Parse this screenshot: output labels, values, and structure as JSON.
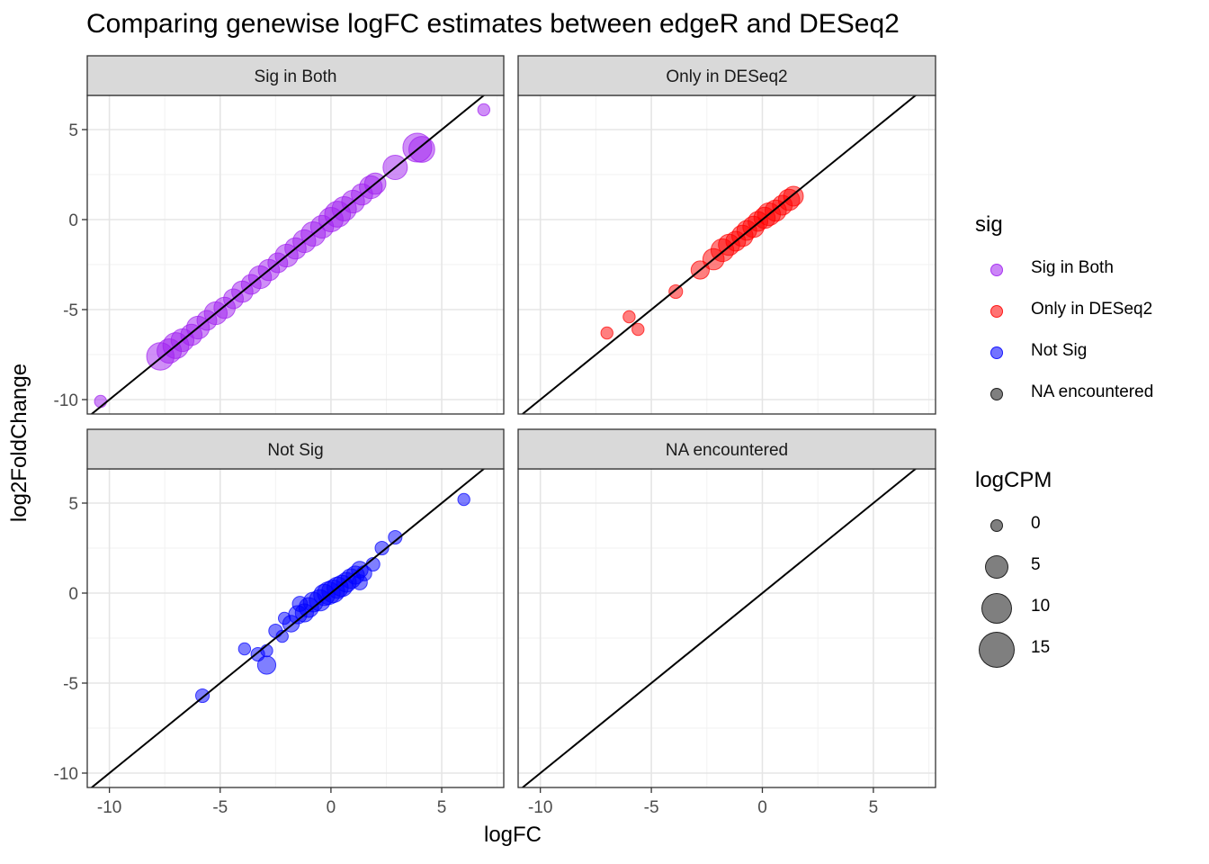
{
  "title": "Comparing genewise logFC estimates between edgeR and DESeq2",
  "chart_data": {
    "type": "scatter",
    "title": "Comparing genewise logFC estimates between edgeR and DESeq2",
    "xlabel": "logFC",
    "ylabel": "log2FoldChange",
    "xlim": [
      -11,
      7.8
    ],
    "ylim": [
      -10.8,
      6.9
    ],
    "xticks": [
      -10,
      -5,
      0,
      5
    ],
    "yticks": [
      -10,
      -5,
      0,
      5
    ],
    "grid": true,
    "reference_line": {
      "slope": 1,
      "intercept": 0
    },
    "facets": [
      "Sig in Both",
      "Only in DESeq2",
      "Not Sig",
      "NA encountered"
    ],
    "series": [
      {
        "name": "Sig in Both",
        "color": "#a020f0",
        "points": [
          {
            "x": -10.4,
            "y": -10.1,
            "size": 2
          },
          {
            "x": -7.7,
            "y": -7.6,
            "size": 12
          },
          {
            "x": -7.3,
            "y": -7.3,
            "size": 10
          },
          {
            "x": -7.0,
            "y": -7.0,
            "size": 11
          },
          {
            "x": -6.7,
            "y": -6.7,
            "size": 9
          },
          {
            "x": -6.3,
            "y": -6.4,
            "size": 8
          },
          {
            "x": -6.0,
            "y": -6.0,
            "size": 9
          },
          {
            "x": -5.6,
            "y": -5.6,
            "size": 7
          },
          {
            "x": -5.2,
            "y": -5.2,
            "size": 9
          },
          {
            "x": -4.8,
            "y": -4.9,
            "size": 8
          },
          {
            "x": -4.4,
            "y": -4.4,
            "size": 7
          },
          {
            "x": -4.0,
            "y": -4.0,
            "size": 8
          },
          {
            "x": -3.6,
            "y": -3.6,
            "size": 7
          },
          {
            "x": -3.2,
            "y": -3.2,
            "size": 9
          },
          {
            "x": -2.8,
            "y": -2.8,
            "size": 8
          },
          {
            "x": -2.4,
            "y": -2.4,
            "size": 7
          },
          {
            "x": -2.0,
            "y": -2.0,
            "size": 9
          },
          {
            "x": -1.6,
            "y": -1.6,
            "size": 8
          },
          {
            "x": -1.2,
            "y": -1.2,
            "size": 9
          },
          {
            "x": -0.8,
            "y": -0.8,
            "size": 10
          },
          {
            "x": -0.4,
            "y": -0.4,
            "size": 9
          },
          {
            "x": 0.0,
            "y": 0.0,
            "size": 10
          },
          {
            "x": 0.3,
            "y": 0.3,
            "size": 11
          },
          {
            "x": 0.6,
            "y": 0.6,
            "size": 10
          },
          {
            "x": 1.0,
            "y": 1.0,
            "size": 9
          },
          {
            "x": 1.4,
            "y": 1.4,
            "size": 8
          },
          {
            "x": 1.8,
            "y": 1.8,
            "size": 9
          },
          {
            "x": 2.0,
            "y": 2.0,
            "size": 8
          },
          {
            "x": 2.9,
            "y": 2.9,
            "size": 10
          },
          {
            "x": 3.9,
            "y": 4.0,
            "size": 13
          },
          {
            "x": 4.1,
            "y": 3.9,
            "size": 11
          },
          {
            "x": 6.9,
            "y": 6.1,
            "size": 2
          }
        ]
      },
      {
        "name": "Only in DESeq2",
        "color": "#ff0000",
        "points": [
          {
            "x": -7.0,
            "y": -6.3,
            "size": 2
          },
          {
            "x": -6.0,
            "y": -5.4,
            "size": 2
          },
          {
            "x": -5.6,
            "y": -6.1,
            "size": 2
          },
          {
            "x": -3.9,
            "y": -4.0,
            "size": 3
          },
          {
            "x": -2.8,
            "y": -2.8,
            "size": 6
          },
          {
            "x": -2.2,
            "y": -2.2,
            "size": 8
          },
          {
            "x": -1.8,
            "y": -1.7,
            "size": 9
          },
          {
            "x": -1.5,
            "y": -1.4,
            "size": 8
          },
          {
            "x": -1.2,
            "y": -1.2,
            "size": 7
          },
          {
            "x": -0.9,
            "y": -0.9,
            "size": 8
          },
          {
            "x": -0.7,
            "y": -0.6,
            "size": 7
          },
          {
            "x": -0.4,
            "y": -0.4,
            "size": 8
          },
          {
            "x": -0.2,
            "y": -0.1,
            "size": 7
          },
          {
            "x": 0.1,
            "y": 0.1,
            "size": 8
          },
          {
            "x": 0.3,
            "y": 0.3,
            "size": 9
          },
          {
            "x": 0.6,
            "y": 0.5,
            "size": 8
          },
          {
            "x": 0.9,
            "y": 0.8,
            "size": 7
          },
          {
            "x": 1.2,
            "y": 1.1,
            "size": 8
          },
          {
            "x": 1.4,
            "y": 1.3,
            "size": 7
          }
        ]
      },
      {
        "name": "Not Sig",
        "color": "#0000ff",
        "points": [
          {
            "x": -5.8,
            "y": -5.7,
            "size": 3
          },
          {
            "x": -3.9,
            "y": -3.1,
            "size": 2
          },
          {
            "x": -3.3,
            "y": -3.4,
            "size": 3
          },
          {
            "x": -2.9,
            "y": -4.0,
            "size": 6
          },
          {
            "x": -2.9,
            "y": -3.2,
            "size": 2
          },
          {
            "x": -2.5,
            "y": -2.1,
            "size": 3
          },
          {
            "x": -2.2,
            "y": -2.4,
            "size": 2
          },
          {
            "x": -2.1,
            "y": -1.4,
            "size": 2
          },
          {
            "x": -1.8,
            "y": -1.7,
            "size": 5
          },
          {
            "x": -1.5,
            "y": -1.2,
            "size": 6
          },
          {
            "x": -1.2,
            "y": -1.1,
            "size": 6
          },
          {
            "x": -1.0,
            "y": -0.8,
            "size": 7
          },
          {
            "x": -0.8,
            "y": -0.5,
            "size": 7
          },
          {
            "x": -0.5,
            "y": -0.4,
            "size": 8
          },
          {
            "x": -0.3,
            "y": -0.1,
            "size": 8
          },
          {
            "x": -0.1,
            "y": 0.0,
            "size": 9
          },
          {
            "x": 0.1,
            "y": 0.1,
            "size": 9
          },
          {
            "x": 0.3,
            "y": 0.3,
            "size": 8
          },
          {
            "x": 0.5,
            "y": 0.4,
            "size": 8
          },
          {
            "x": 0.7,
            "y": 0.6,
            "size": 7
          },
          {
            "x": 0.9,
            "y": 0.8,
            "size": 7
          },
          {
            "x": 1.1,
            "y": 1.0,
            "size": 6
          },
          {
            "x": 1.3,
            "y": 0.6,
            "size": 4
          },
          {
            "x": 1.5,
            "y": 1.1,
            "size": 4
          },
          {
            "x": 1.9,
            "y": 1.6,
            "size": 3
          },
          {
            "x": 2.3,
            "y": 2.5,
            "size": 3
          },
          {
            "x": 2.9,
            "y": 3.1,
            "size": 3
          },
          {
            "x": 6.0,
            "y": 5.2,
            "size": 2
          },
          {
            "x": -1.4,
            "y": -0.6,
            "size": 4
          },
          {
            "x": 1.3,
            "y": 1.3,
            "size": 5
          }
        ]
      },
      {
        "name": "NA encountered",
        "color": "#000000",
        "points": []
      }
    ],
    "legend": {
      "position": "right",
      "color_title": "sig",
      "color_entries": [
        "Sig in Both",
        "Only in DESeq2",
        "Not Sig",
        "NA encountered"
      ],
      "size_title": "logCPM",
      "size_entries": [
        "0",
        "5",
        "10",
        "15"
      ]
    }
  }
}
